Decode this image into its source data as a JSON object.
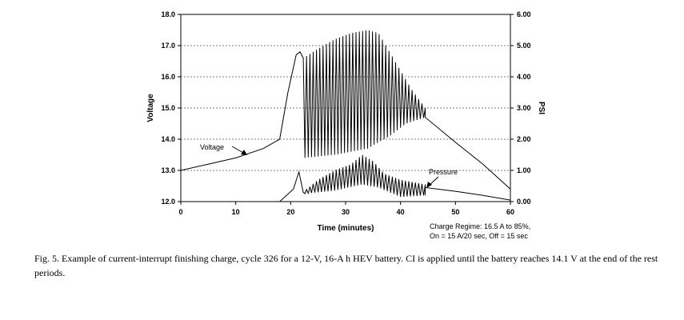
{
  "chart_data": {
    "type": "line",
    "xlabel": "Time (minutes)",
    "ylabel": "Voltage",
    "y2label": "PSI",
    "xlim": [
      0,
      60
    ],
    "ylim": [
      12.0,
      18.0
    ],
    "y2lim": [
      0,
      6
    ],
    "xticks": [
      "0",
      "10",
      "20",
      "30",
      "40",
      "50",
      "60"
    ],
    "yticks": [
      "12.0",
      "13.0",
      "14.0",
      "15.0",
      "16.0",
      "17.0",
      "18.0"
    ],
    "y2ticks": [
      "0.00",
      "1.00",
      "2.00",
      "3.00",
      "4.00",
      "5.00",
      "6.00"
    ],
    "grid": "horizontal-dashed",
    "series": [
      {
        "name": "Voltage",
        "axis": "left",
        "pre_points": [
          [
            0,
            13.0
          ],
          [
            5,
            13.2
          ],
          [
            10,
            13.4
          ],
          [
            15,
            13.7
          ],
          [
            18,
            14.0
          ],
          [
            19.5,
            15.5
          ],
          [
            21,
            16.7
          ],
          [
            21.7,
            16.8
          ],
          [
            22.3,
            16.6
          ]
        ],
        "pulse": {
          "start": 22.3,
          "end": 44.5,
          "period": 0.6,
          "high_env": [
            [
              22.3,
              16.6
            ],
            [
              25,
              16.9
            ],
            [
              28,
              17.2
            ],
            [
              31,
              17.4
            ],
            [
              34,
              17.5
            ],
            [
              36,
              17.4
            ],
            [
              38,
              16.8
            ],
            [
              40,
              16.2
            ],
            [
              42,
              15.6
            ],
            [
              44.5,
              15.0
            ]
          ],
          "low_env": [
            [
              22.3,
              13.4
            ],
            [
              28,
              13.5
            ],
            [
              34,
              13.7
            ],
            [
              38,
              14.1
            ],
            [
              41,
              14.5
            ],
            [
              44.5,
              14.7
            ]
          ]
        },
        "post_points": [
          [
            44.5,
            14.7
          ],
          [
            50,
            13.9
          ],
          [
            55,
            13.2
          ],
          [
            60,
            12.4
          ]
        ]
      },
      {
        "name": "Pressure",
        "axis": "right",
        "pre_points": [
          [
            0,
            0
          ],
          [
            18,
            0
          ],
          [
            20.5,
            0.4
          ],
          [
            21.5,
            0.95
          ],
          [
            22.3,
            0.3
          ]
        ],
        "pulse": {
          "start": 22.3,
          "end": 44.5,
          "period": 0.6,
          "high_env": [
            [
              22.3,
              0.3
            ],
            [
              25,
              0.7
            ],
            [
              28,
              1.0
            ],
            [
              31,
              1.2
            ],
            [
              33,
              1.5
            ],
            [
              35,
              1.3
            ],
            [
              37,
              0.9
            ],
            [
              40,
              0.7
            ],
            [
              44.5,
              0.55
            ]
          ],
          "low_env": [
            [
              22.3,
              0.25
            ],
            [
              28,
              0.35
            ],
            [
              33,
              0.55
            ],
            [
              36,
              0.45
            ],
            [
              40,
              0.15
            ],
            [
              44.5,
              0.2
            ]
          ]
        },
        "post_points": [
          [
            44.5,
            0.45
          ],
          [
            50,
            0.33
          ],
          [
            55,
            0.2
          ],
          [
            60,
            0.05
          ]
        ]
      }
    ],
    "annotations": {
      "voltage_label": "Voltage",
      "pressure_label": "Pressure",
      "regime_line1": "Charge Regime:  16.5 A to 85%,",
      "regime_line2": "On = 15 A/20 sec, Off = 15 sec"
    }
  },
  "caption": "Fig. 5. Example of current-interrupt finishing charge, cycle 326 for a 12-V, 16-A h HEV battery. CI is applied until the battery reaches 14.1 V at the end of the rest periods."
}
